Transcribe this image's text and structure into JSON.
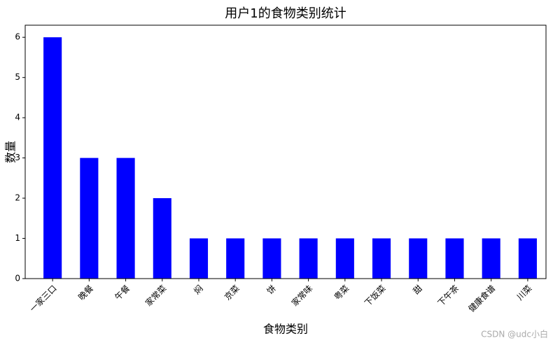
{
  "chart_data": {
    "type": "bar",
    "title": "用户1的食物类别统计",
    "x_label": "食物类别",
    "y_label": "数量",
    "categories": [
      "一家三口",
      "晚餐",
      "午餐",
      "家常菜",
      "焖",
      "京菜",
      "饼",
      "家常味",
      "粤菜",
      "下饭菜",
      "甜",
      "下午茶",
      "健康食谱",
      "川菜"
    ],
    "values": [
      6,
      3,
      3,
      2,
      1,
      1,
      1,
      1,
      1,
      1,
      1,
      1,
      1,
      1
    ],
    "color": "#0000ff",
    "ylim": [
      0,
      6.3
    ],
    "yticks": [
      0,
      1,
      2,
      3,
      4,
      5,
      6
    ],
    "grid": false
  },
  "watermark": "CSDN @udc小白"
}
